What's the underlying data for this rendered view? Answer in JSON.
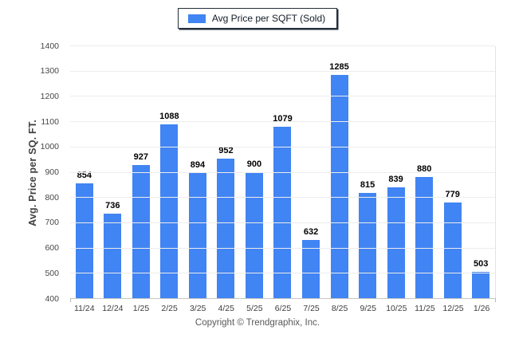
{
  "legend": {
    "label": "Avg Price per SQFT (Sold)",
    "swatch_color": "#4184F3"
  },
  "chart_data": {
    "type": "bar",
    "title": "",
    "xlabel": "",
    "ylabel": "Avg. Price per SQ. FT.",
    "categories": [
      "11/24",
      "12/24",
      "1/25",
      "2/25",
      "3/25",
      "4/25",
      "5/25",
      "6/25",
      "7/25",
      "8/25",
      "9/25",
      "10/25",
      "11/25",
      "12/25",
      "1/26"
    ],
    "values": [
      854,
      736,
      927,
      1088,
      894,
      952,
      900,
      1079,
      632,
      1285,
      815,
      839,
      880,
      779,
      503
    ],
    "ylim": [
      400,
      1400
    ],
    "yticks": [
      400,
      500,
      600,
      700,
      800,
      900,
      1000,
      1100,
      1200,
      1300,
      1400
    ],
    "grid": true,
    "legend_position": "top-center",
    "bar_color": "#4184F3",
    "gridline_color": "#ededed"
  },
  "footer": {
    "copyright": "Copyright © Trendgraphix, Inc."
  }
}
